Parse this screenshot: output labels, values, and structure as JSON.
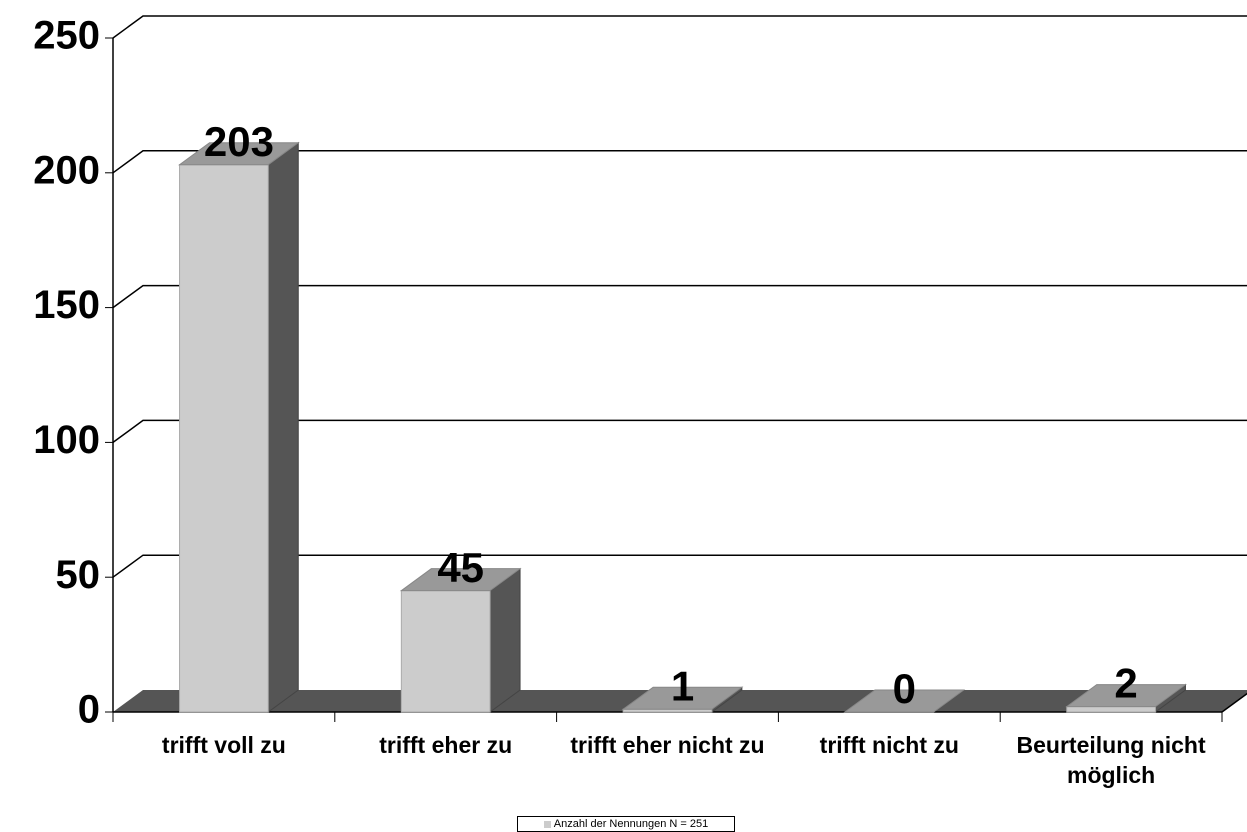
{
  "chart_data": {
    "type": "bar3d",
    "categories": [
      "trifft voll zu",
      "trifft eher zu",
      "trifft eher nicht zu",
      "trifft nicht zu",
      "Beurteilung nicht möglich"
    ],
    "series": [
      {
        "name": "Anzahl der Nennungen N = 251",
        "color": "#cccccc",
        "values": [
          203,
          45,
          1,
          0,
          2
        ]
      }
    ],
    "ylim": [
      0,
      250
    ],
    "yticks": [
      0,
      50,
      100,
      150,
      200,
      250
    ],
    "grid": true,
    "legend": "bottom"
  }
}
